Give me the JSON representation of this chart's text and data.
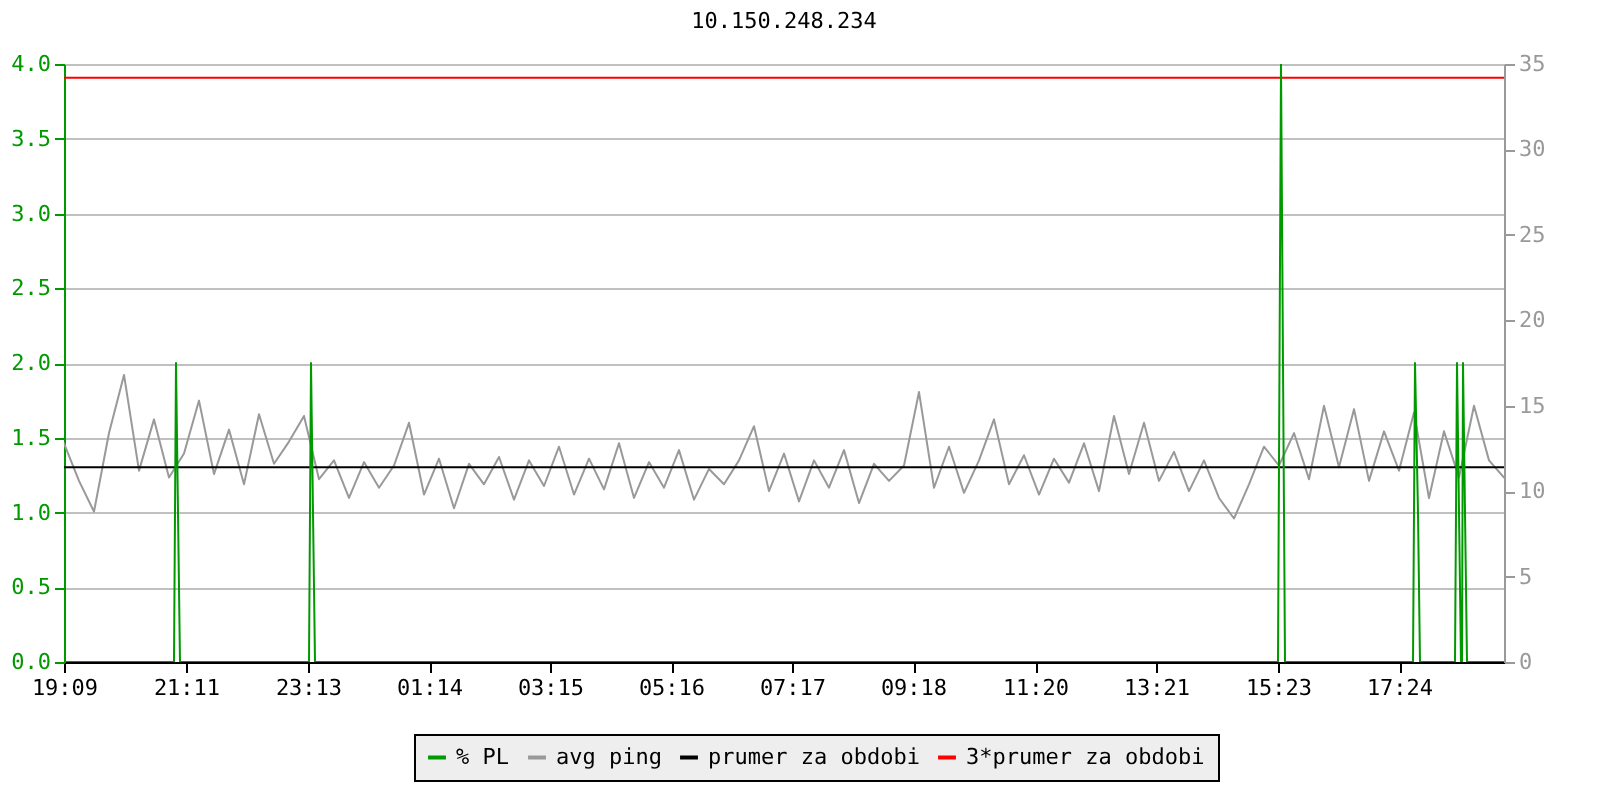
{
  "chart_data": {
    "type": "line",
    "title": "10.150.248.234",
    "xlim": [
      "--01-01T19:09",
      "--01-02T19:09"
    ],
    "xticks": [
      {
        "value": "--01-01T19:09",
        "label": "19:09"
      },
      {
        "value": "--01-01T21:11",
        "label": "21:11"
      },
      {
        "value": "--01-01T23:13",
        "label": "23:13"
      },
      {
        "value": "--01-02T01:14",
        "label": "01:14"
      },
      {
        "value": "--01-02T03:15",
        "label": "03:15"
      },
      {
        "value": "--01-02T05:16",
        "label": "05:16"
      },
      {
        "value": "--01-02T07:17",
        "label": "07:17"
      },
      {
        "value": "--01-02T09:18",
        "label": "09:18"
      },
      {
        "value": "--01-02T11:20",
        "label": "11:20"
      },
      {
        "value": "--01-02T13:21",
        "label": "13:21"
      },
      {
        "value": "--01-02T15:23",
        "label": "15:23"
      },
      {
        "value": "--01-02T17:24",
        "label": "17:24"
      }
    ],
    "ylim": [
      0,
      4
    ],
    "yticks": [
      {
        "value": 0,
        "label": "0.0"
      },
      {
        "value": 0.5,
        "label": "0.5"
      },
      {
        "value": 1,
        "label": "1.0"
      },
      {
        "value": 1.5,
        "label": "1.5"
      },
      {
        "value": 2,
        "label": "2.0"
      },
      {
        "value": 2.5,
        "label": "2.5"
      },
      {
        "value": 3,
        "label": "3.0"
      },
      {
        "value": 3.5,
        "label": "3.5"
      },
      {
        "value": 4,
        "label": "4.0"
      }
    ],
    "y2lim": [
      0,
      35
    ],
    "y2ticks": [
      0,
      5,
      10,
      15,
      20,
      25,
      30,
      35
    ],
    "grid": "y",
    "legend": "bottom",
    "series": [
      {
        "name": "% PL",
        "color": "#009900",
        "x": [
          "--01-01T19:09",
          "--01-01T20:59",
          "--01-01T21:01",
          "--01-01T21:03",
          "--01-01T21:05",
          "--01-01T23:14",
          "--01-01T23:16",
          "--01-01T23:18",
          "--01-01T23:20",
          "--01-02T15:23",
          "--01-02T15:26",
          "--01-02T15:28",
          "--01-02T15:30",
          "--01-02T17:38",
          "--01-02T17:40",
          "--01-02T17:43",
          "--01-02T17:45",
          "--01-02T18:20",
          "--01-02T18:22",
          "--01-02T18:24",
          "--01-02T18:26",
          "--01-02T18:27",
          "--01-02T18:28",
          "--01-02T18:30",
          "--01-02T18:32",
          "--01-02T19:09"
        ],
        "values": [
          0,
          0,
          2,
          1,
          0,
          0,
          2,
          1,
          0,
          0,
          4,
          2,
          0,
          0,
          2,
          1,
          0,
          0,
          2,
          1,
          0,
          0,
          2,
          1,
          0,
          0
        ]
      },
      {
        "name": "avg ping",
        "color": "#999999",
        "axis": "y2",
        "x": [
          "--01-01T19:09",
          "--01-01T19:24",
          "--01-01T19:39",
          "--01-01T19:54",
          "--01-01T20:09",
          "--01-01T20:24",
          "--01-01T20:39",
          "--01-01T20:54",
          "--01-01T21:09",
          "--01-01T21:24",
          "--01-01T21:39",
          "--01-01T21:54",
          "--01-01T22:09",
          "--01-01T22:24",
          "--01-01T22:39",
          "--01-01T22:54",
          "--01-01T23:09",
          "--01-01T23:24",
          "--01-01T23:39",
          "--01-01T23:54",
          "--01-02T00:09",
          "--01-02T00:24",
          "--01-02T00:39",
          "--01-02T00:54",
          "--01-02T01:09",
          "--01-02T01:24",
          "--01-02T01:39",
          "--01-02T01:54",
          "--01-02T02:09",
          "--01-02T02:24",
          "--01-02T02:39",
          "--01-02T02:54",
          "--01-02T03:09",
          "--01-02T03:24",
          "--01-02T03:39",
          "--01-02T03:54",
          "--01-02T04:09",
          "--01-02T04:24",
          "--01-02T04:39",
          "--01-02T04:54",
          "--01-02T05:09",
          "--01-02T05:24",
          "--01-02T05:39",
          "--01-02T05:54",
          "--01-02T06:09",
          "--01-02T06:24",
          "--01-02T06:39",
          "--01-02T06:54",
          "--01-02T07:09",
          "--01-02T07:24",
          "--01-02T07:39",
          "--01-02T07:54",
          "--01-02T08:09",
          "--01-02T08:24",
          "--01-02T08:39",
          "--01-02T08:54",
          "--01-02T09:09",
          "--01-02T09:24",
          "--01-02T09:39",
          "--01-02T09:54",
          "--01-02T10:09",
          "--01-02T10:24",
          "--01-02T10:39",
          "--01-02T10:54",
          "--01-02T11:09",
          "--01-02T11:24",
          "--01-02T11:39",
          "--01-02T11:54",
          "--01-02T12:09",
          "--01-02T12:24",
          "--01-02T12:39",
          "--01-02T12:54",
          "--01-02T13:09",
          "--01-02T13:24",
          "--01-02T13:39",
          "--01-02T13:54",
          "--01-02T14:09",
          "--01-02T14:24",
          "--01-02T14:39",
          "--01-02T14:54",
          "--01-02T15:09",
          "--01-02T15:24",
          "--01-02T15:39",
          "--01-02T15:54",
          "--01-02T16:09",
          "--01-02T16:24",
          "--01-02T16:39",
          "--01-02T16:54",
          "--01-02T17:09",
          "--01-02T17:24",
          "--01-02T17:39",
          "--01-02T17:54",
          "--01-02T18:09",
          "--01-02T18:24",
          "--01-02T18:39",
          "--01-02T18:54",
          "--01-02T19:09"
        ],
        "values": [
          12.8,
          10.6,
          8.8,
          13.4,
          16.8,
          11.2,
          14.2,
          10.8,
          12.2,
          15.3,
          11.0,
          13.6,
          10.4,
          14.5,
          11.6,
          12.9,
          14.4,
          10.7,
          11.8,
          9.6,
          11.7,
          10.2,
          11.5,
          14.0,
          9.8,
          11.9,
          9.0,
          11.6,
          10.4,
          12.0,
          9.5,
          11.8,
          10.3,
          12.6,
          9.8,
          11.9,
          10.1,
          12.8,
          9.6,
          11.7,
          10.2,
          12.4,
          9.5,
          11.3,
          10.4,
          11.8,
          13.8,
          10.0,
          12.2,
          9.4,
          11.8,
          10.2,
          12.4,
          9.3,
          11.6,
          10.6,
          11.5,
          15.8,
          10.2,
          12.6,
          9.9,
          11.8,
          14.2,
          10.4,
          12.1,
          9.8,
          11.9,
          10.5,
          12.8,
          10.0,
          14.4,
          11.0,
          14.0,
          10.6,
          12.3,
          10.0,
          11.8,
          9.6,
          8.4,
          10.4,
          12.6,
          11.5,
          13.4,
          10.7,
          15.0,
          11.4,
          14.8,
          10.6,
          13.5,
          11.2,
          14.6,
          9.6,
          13.5,
          10.8,
          15.0,
          11.8,
          10.8
        ]
      },
      {
        "name": "prumer za obdobi",
        "color": "#000000",
        "axis": "y2",
        "x": [
          "--01-01T19:09",
          "--01-02T19:09"
        ],
        "values": [
          11.4,
          11.4
        ]
      },
      {
        "name": "3*prumer za obdobi",
        "color": "#ff0000",
        "axis": "y2",
        "x": [
          "--01-01T19:09",
          "--01-02T19:09"
        ],
        "values": [
          34.2,
          34.2
        ]
      }
    ]
  }
}
